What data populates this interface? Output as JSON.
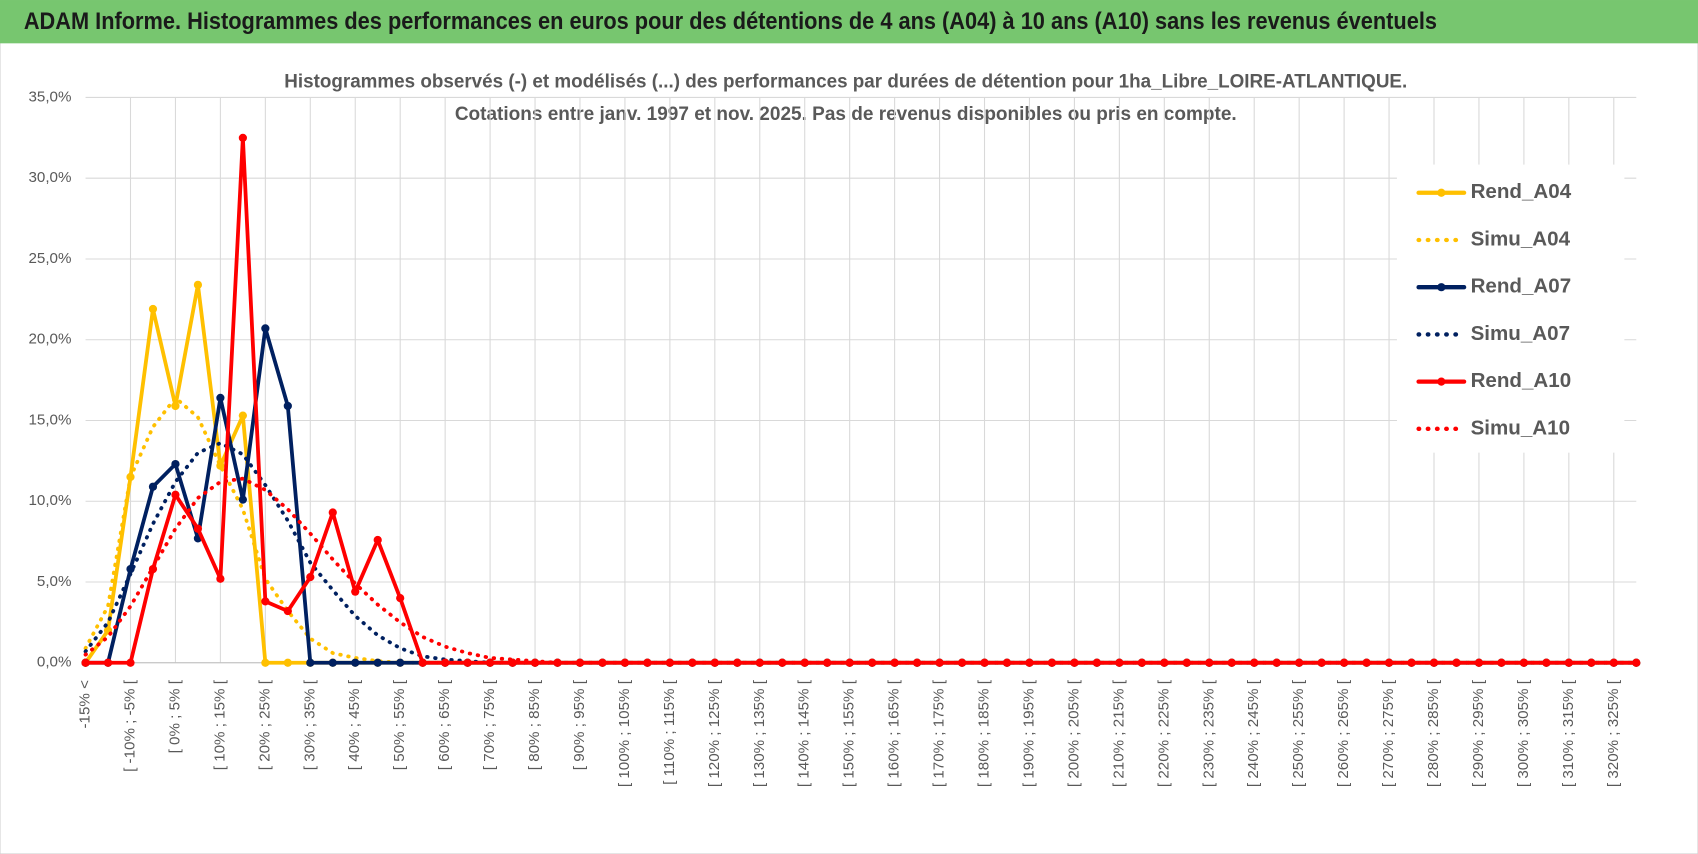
{
  "header": {
    "title": "ADAM Informe. Histogrammes des performances en euros pour des détentions de 4 ans (A04) à 10 ans (A10) sans les revenus éventuels"
  },
  "chart_data": {
    "type": "line",
    "title": [
      "Histogrammes observés (-) et modélisés (...) des performances par durées de détention pour 1ha_Libre_LOIRE-ATLANTIQUE.",
      "Cotations entre janv. 1997 et nov. 2025. Pas de revenus disponibles ou pris en compte."
    ],
    "categories": [
      "-15% <",
      null,
      "[ -10% ; -5% [",
      null,
      "[ 0% ; 5% [",
      null,
      "[ 10% ; 15% [",
      null,
      "[ 20% ; 25% [",
      null,
      "[ 30% ; 35% [",
      null,
      "[ 40% ; 45% [",
      null,
      "[ 50% ; 55% [",
      null,
      "[ 60% ; 65% [",
      null,
      "[ 70% ; 75% [",
      null,
      "[ 80% ; 85% [",
      null,
      "[ 90% ; 95% [",
      null,
      "[ 100% ; 105% [",
      null,
      "[ 110% ; 115% [",
      null,
      "[ 120% ; 125% [",
      null,
      "[ 130% ; 135% [",
      null,
      "[ 140% ; 145% [",
      null,
      "[ 150% ; 155% [",
      null,
      "[ 160% ; 165% [",
      null,
      "[ 170% ; 175% [",
      null,
      "[ 180% ; 185% [",
      null,
      "[ 190% ; 195% [",
      null,
      "[ 200% ; 205% [",
      null,
      "[ 210% ; 215% [",
      null,
      "[ 220% ; 225% [",
      null,
      "[ 230% ; 235% [",
      null,
      "[ 240% ; 245% [",
      null,
      "[ 250% ; 255% [",
      null,
      "[ 260% ; 265% [",
      null,
      "[ 270% ; 275% [",
      null,
      "[ 280% ; 285% [",
      null,
      "[ 290% ; 295% [",
      null,
      "[ 300% ; 305% [",
      null,
      "[ 310% ; 315% [",
      null,
      "[ 320% ; 325% [",
      null
    ],
    "series": [
      {
        "name": "Rend_A04",
        "color": "#ffc000",
        "line_style": "solid",
        "markers": true,
        "values": [
          0,
          2,
          11.5,
          21.9,
          15.9,
          23.4,
          12.2,
          15.3,
          0,
          0,
          0,
          0,
          0,
          0,
          0,
          0,
          0,
          0,
          0,
          0,
          0,
          0,
          0,
          0,
          0,
          0,
          0,
          0,
          0,
          0,
          0,
          0,
          0,
          0,
          0,
          0,
          0,
          0,
          0,
          0,
          0,
          0,
          0,
          0,
          0,
          0,
          0,
          0,
          0,
          0,
          0,
          0,
          0,
          0,
          0,
          0,
          0,
          0,
          0,
          0,
          0,
          0,
          0,
          0,
          0,
          0,
          0,
          0,
          0,
          0
        ]
      },
      {
        "name": "Simu_A04",
        "color": "#ffc000",
        "line_style": "dotted",
        "markers": false,
        "values": [
          0.9,
          3.5,
          11.5,
          14.6,
          16.4,
          15.2,
          12.2,
          9.5,
          5.2,
          3.2,
          1.5,
          0.6,
          0.3,
          0.1,
          0,
          0,
          0,
          0,
          0,
          0,
          0,
          0,
          0,
          0,
          0,
          0,
          0,
          0,
          0,
          0,
          0,
          0,
          0,
          0,
          0,
          0,
          0,
          0,
          0,
          0,
          0,
          0,
          0,
          0,
          0,
          0,
          0,
          0,
          0,
          0,
          0,
          0,
          0,
          0,
          0,
          0,
          0,
          0,
          0,
          0,
          0,
          0,
          0,
          0,
          0,
          0,
          0,
          0,
          0,
          0
        ]
      },
      {
        "name": "Rend_A07",
        "color": "#002060",
        "line_style": "solid",
        "markers": true,
        "values": [
          0,
          0,
          5.8,
          10.9,
          12.3,
          7.7,
          16.4,
          10.1,
          20.7,
          15.9,
          0,
          0,
          0,
          0,
          0,
          0,
          0,
          0,
          0,
          0,
          0,
          0,
          0,
          0,
          0,
          0,
          0,
          0,
          0,
          0,
          0,
          0,
          0,
          0,
          0,
          0,
          0,
          0,
          0,
          0,
          0,
          0,
          0,
          0,
          0,
          0,
          0,
          0,
          0,
          0,
          0,
          0,
          0,
          0,
          0,
          0,
          0,
          0,
          0,
          0,
          0,
          0,
          0,
          0,
          0,
          0,
          0,
          0,
          0,
          0
        ]
      },
      {
        "name": "Simu_A07",
        "color": "#002060",
        "line_style": "dotted",
        "markers": false,
        "values": [
          0.7,
          2.5,
          5.5,
          8.6,
          11.2,
          13,
          13.6,
          12.9,
          11,
          8.8,
          6.2,
          4.5,
          2.9,
          1.7,
          0.9,
          0.4,
          0.2,
          0.1,
          0,
          0,
          0,
          0,
          0,
          0,
          0,
          0,
          0,
          0,
          0,
          0,
          0,
          0,
          0,
          0,
          0,
          0,
          0,
          0,
          0,
          0,
          0,
          0,
          0,
          0,
          0,
          0,
          0,
          0,
          0,
          0,
          0,
          0,
          0,
          0,
          0,
          0,
          0,
          0,
          0,
          0,
          0,
          0,
          0,
          0,
          0,
          0,
          0,
          0,
          0,
          0
        ]
      },
      {
        "name": "Rend_A10",
        "color": "#ff0000",
        "line_style": "solid",
        "markers": true,
        "values": [
          0,
          0,
          0,
          5.8,
          10.4,
          8.3,
          5.2,
          32.5,
          3.8,
          3.2,
          5.3,
          9.3,
          4.4,
          7.6,
          4,
          0,
          0,
          0,
          0,
          0,
          0,
          0,
          0,
          0,
          0,
          0,
          0,
          0,
          0,
          0,
          0,
          0,
          0,
          0,
          0,
          0,
          0,
          0,
          0,
          0,
          0,
          0,
          0,
          0,
          0,
          0,
          0,
          0,
          0,
          0,
          0,
          0,
          0,
          0,
          0,
          0,
          0,
          0,
          0,
          0,
          0,
          0,
          0,
          0,
          0,
          0,
          0,
          0,
          0,
          0
        ]
      },
      {
        "name": "Simu_A10",
        "color": "#ff0000",
        "line_style": "dotted",
        "markers": false,
        "values": [
          0.5,
          1.6,
          3.5,
          5.9,
          8.3,
          10.2,
          11.2,
          11.4,
          10.7,
          9.5,
          8,
          6.4,
          4.9,
          3.6,
          2.5,
          1.6,
          1,
          0.6,
          0.3,
          0.2,
          0.1,
          0,
          0,
          0,
          0,
          0,
          0,
          0,
          0,
          0,
          0,
          0,
          0,
          0,
          0,
          0,
          0,
          0,
          0,
          0,
          0,
          0,
          0,
          0,
          0,
          0,
          0,
          0,
          0,
          0,
          0,
          0,
          0,
          0,
          0,
          0,
          0,
          0,
          0,
          0,
          0,
          0,
          0,
          0,
          0,
          0,
          0,
          0,
          0,
          0
        ]
      }
    ],
    "ylim": [
      0,
      35
    ],
    "yticks": [
      {
        "value": 0,
        "label": "0,0%"
      },
      {
        "value": 5,
        "label": "5,0%"
      },
      {
        "value": 10,
        "label": "10,0%"
      },
      {
        "value": 15,
        "label": "15,0%"
      },
      {
        "value": 20,
        "label": "20,0%"
      },
      {
        "value": 25,
        "label": "25,0%"
      },
      {
        "value": 30,
        "label": "30,0%"
      },
      {
        "value": 35,
        "label": "35,0%"
      }
    ],
    "grid": true,
    "legend": "right"
  }
}
